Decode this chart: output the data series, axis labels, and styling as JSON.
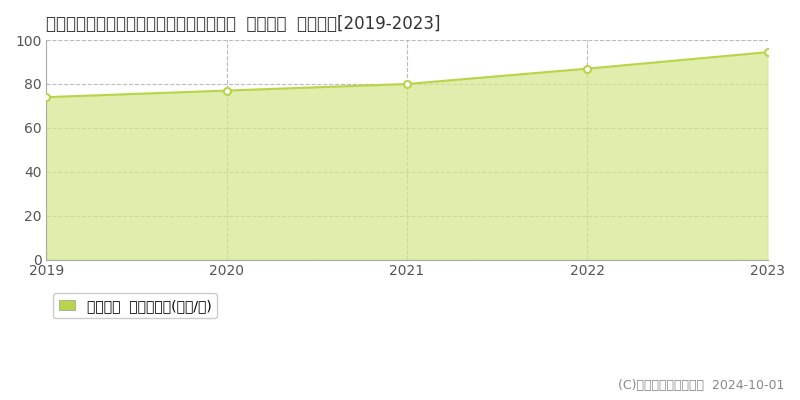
{
  "title": "茨城県つくば市研究学園５丁目１２番４外  基準地価  地価推移[2019-2023]",
  "years": [
    2019,
    2020,
    2021,
    2022,
    2023
  ],
  "values": [
    74.0,
    77.0,
    80.0,
    87.0,
    94.5
  ],
  "ylim": [
    0,
    100
  ],
  "yticks": [
    0,
    20,
    40,
    60,
    80,
    100
  ],
  "line_color": "#b8d44a",
  "fill_color": "#d4e88a",
  "fill_alpha": 0.7,
  "marker_color": "white",
  "marker_edge_color": "#b8d44a",
  "grid_color": "#bbbbbb",
  "bg_color": "#ffffff",
  "legend_label": "基準地価  平均坪単価(万円/坪)",
  "copyright_text": "(C)土地価格ドットコム  2024-10-01",
  "title_fontsize": 12,
  "tick_fontsize": 10,
  "legend_fontsize": 10,
  "copyright_fontsize": 9,
  "axis_label_color": "#555555",
  "title_color": "#333333"
}
